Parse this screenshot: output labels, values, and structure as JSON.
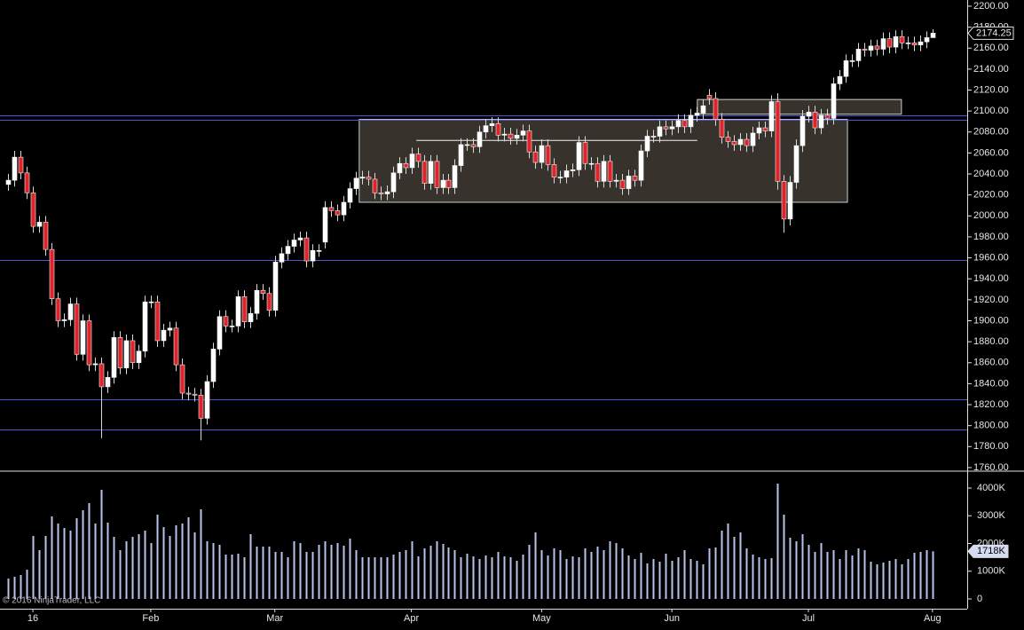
{
  "chart_data": {
    "type": "candlestick",
    "open": [
      2030,
      2034,
      2056,
      2041,
      2022,
      1990,
      1994,
      1968,
      1921,
      1900,
      1901,
      1916,
      1868,
      1900,
      1858,
      1859,
      1837,
      1846,
      1884,
      1855,
      1881,
      1860,
      1871,
      1918,
      1918,
      1881,
      1891,
      1893,
      1858,
      1831,
      1830,
      1829,
      1807,
      1842,
      1873,
      1904,
      1895,
      1895,
      1923,
      1899,
      1907,
      1929,
      1926,
      1910,
      1956,
      1964,
      1971,
      1977,
      1979,
      1957,
      1967,
      1975,
      2008,
      2005,
      2001,
      2013,
      2026,
      2036,
      2037,
      2035,
      2022,
      2021,
      2023,
      2041,
      2050,
      2046,
      2059,
      2052,
      2031,
      2052,
      2027,
      2034,
      2027,
      2048,
      2068,
      2068,
      2066,
      2080,
      2086,
      2088,
      2077,
      2078,
      2074,
      2077,
      2081,
      2061,
      2051,
      2067,
      2049,
      2037,
      2037,
      2043,
      2044,
      2070,
      2050,
      2050,
      2033,
      2052,
      2033,
      2034,
      2026,
      2038,
      2034,
      2062,
      2076,
      2076,
      2085,
      2083,
      2085,
      2091,
      2085,
      2096,
      2098,
      2115,
      2112,
      2092,
      2075,
      2071,
      2068,
      2073,
      2067,
      2079,
      2084,
      2081,
      2109,
      2033,
      1997,
      2032,
      2067,
      2095,
      2099,
      2084,
      2096,
      2093,
      2126,
      2133,
      2148,
      2148,
      2159,
      2158,
      2162,
      2159,
      2169,
      2161,
      2171,
      2165,
      2165,
      2163,
      2166,
      2170
    ],
    "high": [
      2040,
      2062,
      2062,
      2047,
      2028,
      2000,
      2000,
      1974,
      1927,
      1907,
      1922,
      1922,
      1906,
      1906,
      1865,
      1865,
      1852,
      1890,
      1890,
      1887,
      1887,
      1877,
      1924,
      1924,
      1924,
      1897,
      1899,
      1899,
      1864,
      1837,
      1836,
      1835,
      1848,
      1879,
      1910,
      1910,
      1901,
      1929,
      1929,
      1913,
      1935,
      1935,
      1932,
      1962,
      1970,
      1977,
      1983,
      1985,
      1985,
      1973,
      1973,
      2014,
      2014,
      2011,
      2019,
      2032,
      2042,
      2043,
      2043,
      2041,
      2028,
      2029,
      2047,
      2056,
      2056,
      2065,
      2065,
      2058,
      2058,
      2058,
      2040,
      2040,
      2054,
      2074,
      2074,
      2074,
      2086,
      2092,
      2094,
      2094,
      2084,
      2084,
      2083,
      2087,
      2087,
      2067,
      2073,
      2073,
      2055,
      2043,
      2049,
      2050,
      2076,
      2076,
      2056,
      2056,
      2058,
      2058,
      2040,
      2040,
      2044,
      2044,
      2068,
      2082,
      2082,
      2091,
      2091,
      2091,
      2097,
      2097,
      2102,
      2104,
      2111,
      2121,
      2118,
      2098,
      2081,
      2077,
      2079,
      2079,
      2085,
      2090,
      2090,
      2115,
      2117,
      2039,
      2038,
      2073,
      2101,
      2105,
      2105,
      2102,
      2102,
      2132,
      2139,
      2154,
      2154,
      2165,
      2165,
      2168,
      2168,
      2175,
      2175,
      2177,
      2177,
      2171,
      2171,
      2172,
      2176,
      2178
    ],
    "low": [
      2024,
      2028,
      2035,
      2016,
      1984,
      1984,
      1962,
      1915,
      1894,
      1894,
      1895,
      1862,
      1862,
      1852,
      1852,
      1788,
      1831,
      1840,
      1849,
      1849,
      1854,
      1854,
      1865,
      1912,
      1875,
      1875,
      1885,
      1852,
      1825,
      1824,
      1823,
      1786,
      1801,
      1836,
      1867,
      1889,
      1889,
      1889,
      1893,
      1893,
      1901,
      1920,
      1904,
      1904,
      1950,
      1958,
      1965,
      1971,
      1951,
      1951,
      1961,
      1969,
      1999,
      1995,
      1995,
      2007,
      2020,
      2030,
      2029,
      2016,
      2015,
      2015,
      2017,
      2035,
      2040,
      2040,
      2046,
      2025,
      2025,
      2021,
      2021,
      2021,
      2021,
      2042,
      2062,
      2060,
      2060,
      2074,
      2080,
      2071,
      2071,
      2068,
      2068,
      2071,
      2055,
      2045,
      2045,
      2043,
      2031,
      2031,
      2031,
      2037,
      2038,
      2044,
      2044,
      2027,
      2027,
      2027,
      2027,
      2020,
      2020,
      2028,
      2028,
      2056,
      2070,
      2070,
      2077,
      2077,
      2079,
      2079,
      2079,
      2090,
      2092,
      2106,
      2086,
      2069,
      2065,
      2062,
      2062,
      2061,
      2061,
      2073,
      2075,
      2075,
      2025,
      1984,
      1991,
      2026,
      2061,
      2089,
      2078,
      2078,
      2087,
      2087,
      2120,
      2127,
      2142,
      2142,
      2152,
      2152,
      2153,
      2153,
      2155,
      2155,
      2159,
      2159,
      2157,
      2157,
      2160,
      2170
    ],
    "close": [
      2034,
      2056,
      2041,
      2022,
      1990,
      1994,
      1968,
      1921,
      1900,
      1901,
      1916,
      1868,
      1900,
      1858,
      1859,
      1837,
      1846,
      1884,
      1855,
      1881,
      1860,
      1871,
      1918,
      1918,
      1881,
      1891,
      1893,
      1858,
      1831,
      1830,
      1829,
      1807,
      1842,
      1873,
      1904,
      1895,
      1895,
      1923,
      1899,
      1907,
      1929,
      1926,
      1910,
      1956,
      1964,
      1971,
      1977,
      1979,
      1957,
      1967,
      1967,
      2008,
      2005,
      2001,
      2013,
      2026,
      2036,
      2037,
      2035,
      2022,
      2021,
      2023,
      2041,
      2050,
      2046,
      2059,
      2052,
      2031,
      2052,
      2027,
      2034,
      2027,
      2048,
      2068,
      2068,
      2066,
      2080,
      2086,
      2088,
      2077,
      2078,
      2074,
      2077,
      2081,
      2061,
      2051,
      2067,
      2049,
      2037,
      2037,
      2043,
      2044,
      2070,
      2050,
      2050,
      2033,
      2052,
      2033,
      2034,
      2026,
      2038,
      2034,
      2062,
      2076,
      2076,
      2085,
      2083,
      2085,
      2091,
      2085,
      2096,
      2098,
      2105,
      2112,
      2092,
      2075,
      2071,
      2068,
      2073,
      2067,
      2079,
      2084,
      2081,
      2109,
      2033,
      1997,
      2032,
      2067,
      2095,
      2099,
      2084,
      2096,
      2093,
      2126,
      2133,
      2148,
      2148,
      2159,
      2158,
      2162,
      2159,
      2169,
      2161,
      2171,
      2165,
      2165,
      2163,
      2166,
      2170,
      2174.25
    ],
    "volume": [
      736,
      800,
      864,
      1056,
      2272,
      1760,
      2272,
      2976,
      2720,
      2560,
      2464,
      2912,
      3200,
      3456,
      2720,
      3936,
      2752,
      2240,
      1760,
      2080,
      2240,
      2336,
      2464,
      2016,
      3040,
      2592,
      2272,
      2656,
      2720,
      2944,
      2400,
      3232,
      2080,
      2016,
      1952,
      1600,
      1600,
      1632,
      1504,
      2336,
      1888,
      1888,
      1888,
      1696,
      1696,
      1504,
      2080,
      2016,
      1696,
      1696,
      1952,
      2080,
      1952,
      2016,
      1920,
      2176,
      1760,
      1504,
      1504,
      1504,
      1504,
      1504,
      1600,
      1696,
      1760,
      2080,
      1536,
      1824,
      1920,
      2080,
      1984,
      1856,
      1760,
      1504,
      1632,
      1536,
      1440,
      1568,
      1504,
      1696,
      1536,
      1504,
      1376,
      1600,
      1952,
      2400,
      1760,
      1568,
      1824,
      1760,
      1440,
      1536,
      1504,
      1824,
      1696,
      1888,
      1760,
      2080,
      2016,
      1824,
      1568,
      1440,
      1664,
      1280,
      1440,
      1344,
      1632,
      1376,
      1504,
      1760,
      1440,
      1376,
      1248,
      1824,
      1856,
      2464,
      2720,
      2240,
      2400,
      1824,
      1600,
      1504,
      1440,
      1472,
      4160,
      3040,
      2208,
      2080,
      2336,
      1952,
      1696,
      2016,
      1696,
      1760,
      1440,
      1760,
      1568,
      1824,
      1760,
      1344,
      1248,
      1312,
      1376,
      1440,
      1248,
      1440,
      1664,
      1696,
      1760,
      1718
    ],
    "last_volume": {
      "value": 1718,
      "label": "1718K"
    },
    "xlim": [
      -1.3,
      154.6
    ],
    "xticks": [
      {
        "value": 4,
        "label": "16"
      },
      {
        "value": 23,
        "label": "Feb"
      },
      {
        "value": 43,
        "label": "Mar"
      },
      {
        "value": 65,
        "label": "Apr"
      },
      {
        "value": 86,
        "label": "May"
      },
      {
        "value": 107,
        "label": "Jun"
      },
      {
        "value": 129,
        "label": "Jul"
      },
      {
        "value": 149,
        "label": "Aug"
      }
    ],
    "ylim": [
      1757.4,
      2205.9
    ],
    "yticks": [
      {
        "value": 1760,
        "label": "1760.00"
      },
      {
        "value": 1780,
        "label": "1780.00"
      },
      {
        "value": 1800,
        "label": "1800.00"
      },
      {
        "value": 1820,
        "label": "1820.00"
      },
      {
        "value": 1840,
        "label": "1840.00"
      },
      {
        "value": 1860,
        "label": "1860.00"
      },
      {
        "value": 1880,
        "label": "1880.00"
      },
      {
        "value": 1900,
        "label": "1900.00"
      },
      {
        "value": 1920,
        "label": "1920.00"
      },
      {
        "value": 1940,
        "label": "1940.00"
      },
      {
        "value": 1960,
        "label": "1960.00"
      },
      {
        "value": 1980,
        "label": "1980.00"
      },
      {
        "value": 2000,
        "label": "2000.00"
      },
      {
        "value": 2020,
        "label": "2020.00"
      },
      {
        "value": 2040,
        "label": "2040.00"
      },
      {
        "value": 2060,
        "label": "2060.00"
      },
      {
        "value": 2080,
        "label": "2080.00"
      },
      {
        "value": 2100,
        "label": "2100.00"
      },
      {
        "value": 2120,
        "label": "2120.00"
      },
      {
        "value": 2140,
        "label": "2140.00"
      },
      {
        "value": 2160,
        "label": "2160.00"
      },
      {
        "value": 2180,
        "label": "2180.00"
      },
      {
        "value": 2200,
        "label": "2200.00"
      }
    ],
    "volume_ylim": [
      -320,
      4576
    ],
    "volume_yticks": [
      0,
      {
        "value": 1000,
        "label": "1000K"
      },
      {
        "value": 2000,
        "label": "2000K"
      },
      {
        "value": 3000,
        "label": "3000K"
      },
      {
        "value": 4000,
        "label": "4000K"
      }
    ],
    "horizontal_lines": [
      2096,
      2092,
      1958,
      1825,
      1796
    ],
    "rectangles": [
      {
        "x": [
          56.6,
          135.3
        ],
        "y": [
          2013,
          2092
        ]
      },
      {
        "x": [
          111.1,
          144
        ],
        "y": [
          2097,
          2111
        ]
      }
    ],
    "segments": [
      {
        "x": [
          65.8,
          111.1
        ],
        "y": [
          2072,
          2072
        ]
      }
    ],
    "colors": {
      "up": "#ffffff",
      "down": "#e0222a",
      "wick": "#d8d8d8",
      "volume": "#b9c3ea",
      "line": "#4b55d6"
    },
    "copyright": "© 2016 NinjaTrader, LLC"
  }
}
